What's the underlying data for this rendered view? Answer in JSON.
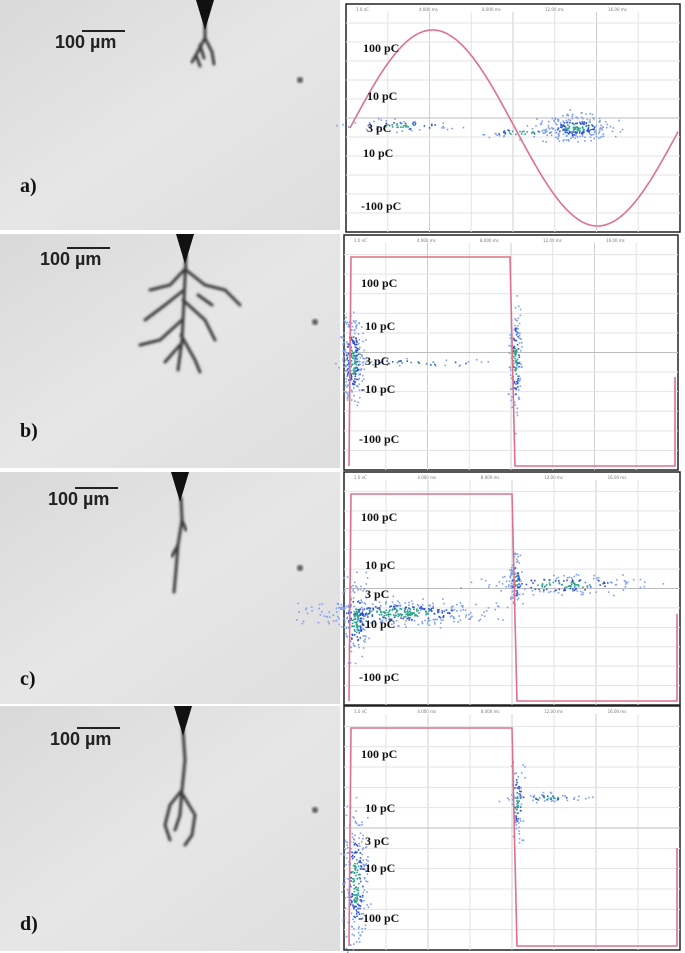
{
  "panels": [
    {
      "label": "a)",
      "scale_bar": "100 µm",
      "axis_header": [
        "1.0 nC",
        "4.000 ms",
        "8.000 ms",
        "12.00 ms",
        "16.00 ms"
      ],
      "y_labels": [
        "100 pC",
        "10 pC",
        "3 pC",
        "10 pC",
        "-100 pC"
      ]
    },
    {
      "label": "b)",
      "scale_bar": "100 µm",
      "axis_header": [
        "1.0 nC",
        "4.000 ms",
        "8.000 ms",
        "12.00 ms",
        "16.00 ms"
      ],
      "y_labels": [
        "100 pC",
        "10 pC",
        "3 pC",
        "-10 pC",
        "-100 pC"
      ]
    },
    {
      "label": "c)",
      "scale_bar": "100 µm",
      "axis_header": [
        "1.0 nC",
        "4.000 ms",
        "8.000 ms",
        "12.00 ms",
        "16.00 ms"
      ],
      "y_labels": [
        "100 pC",
        "10 pC",
        "3 pC",
        "-10 pC",
        "-100 pC"
      ]
    },
    {
      "label": "d)",
      "scale_bar": "100 µm",
      "axis_header": [
        "1.0 nC",
        "4.000 ms",
        "8.000 ms",
        "12.00 ms",
        "16.00 ms"
      ],
      "y_labels": [
        "100 pC",
        "10 pC",
        "3 pC",
        "-10 pC",
        "-100 pC"
      ]
    }
  ]
}
